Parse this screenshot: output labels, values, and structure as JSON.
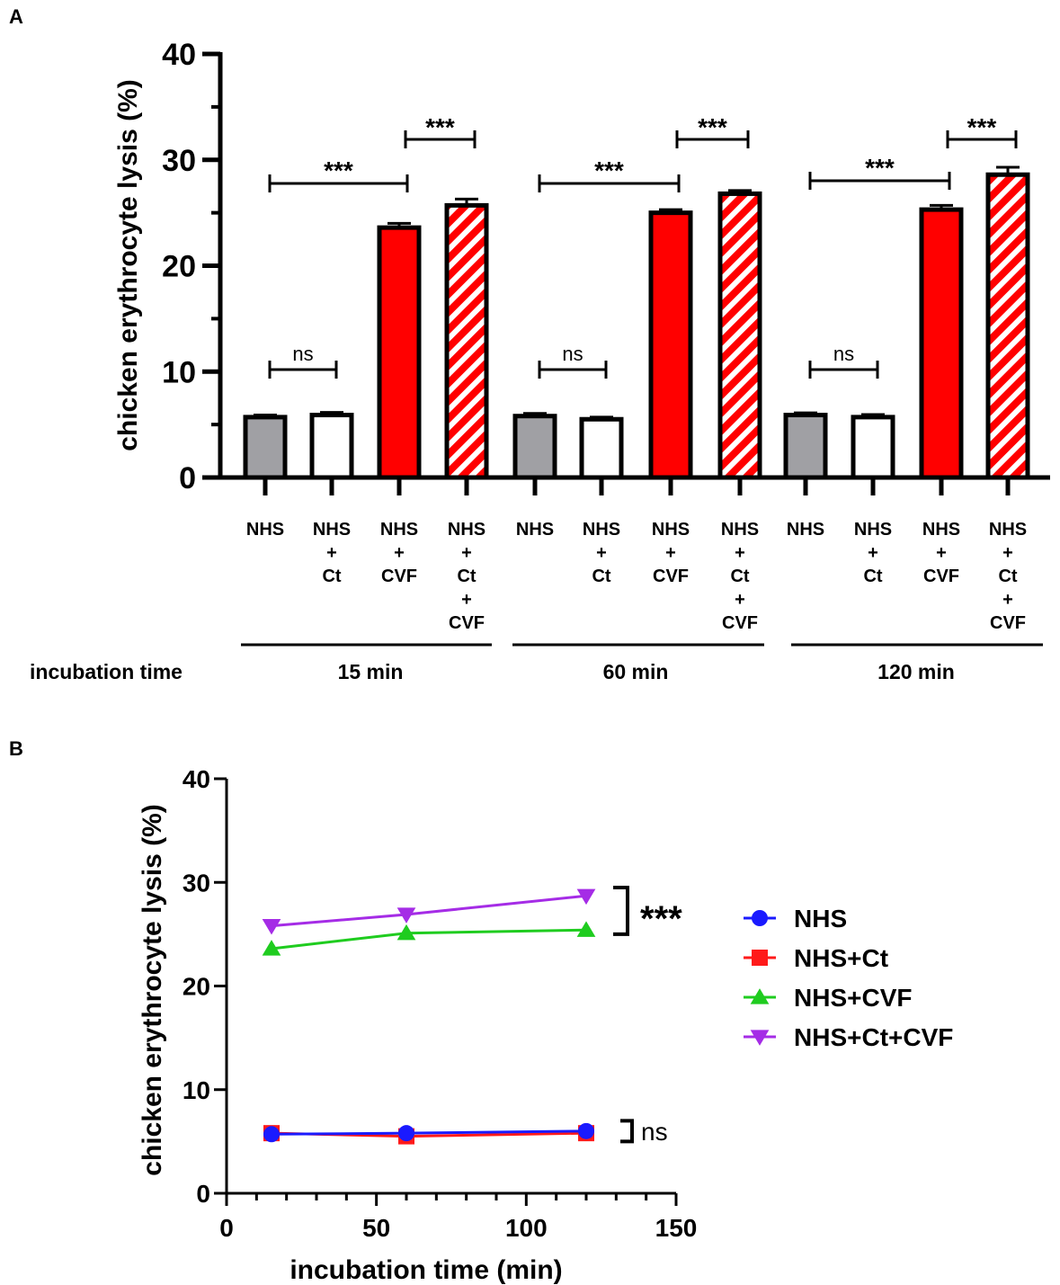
{
  "chart_data": [
    {
      "type": "bar",
      "panel_label": "A",
      "ylabel": "chicken erythrocyte lysis (%)",
      "ylim": [
        0,
        40
      ],
      "yticks": [
        "0",
        "10",
        "20",
        "30",
        "40"
      ],
      "group_axis_label": "incubation time",
      "groups": [
        {
          "label": "15 min",
          "bars": [
            {
              "label": [
                "NHS"
              ],
              "value": 5.7,
              "error": 0.2,
              "fill": "gray"
            },
            {
              "label": [
                "NHS",
                "+",
                "Ct"
              ],
              "value": 5.9,
              "error": 0.25,
              "fill": "white"
            },
            {
              "label": [
                "NHS",
                "+",
                "CVF"
              ],
              "value": 23.6,
              "error": 0.4,
              "fill": "red"
            },
            {
              "label": [
                "NHS",
                "+",
                "Ct",
                "+",
                "CVF"
              ],
              "value": 25.7,
              "error": 0.6,
              "fill": "hatched"
            }
          ],
          "brackets": [
            {
              "from": 0,
              "to": 1,
              "label": "ns"
            },
            {
              "from": 0,
              "to": 2,
              "label": "***"
            },
            {
              "from": 2,
              "to": 3,
              "label": "***"
            }
          ]
        },
        {
          "label": "60 min",
          "bars": [
            {
              "label": [
                "NHS"
              ],
              "value": 5.8,
              "error": 0.25,
              "fill": "gray"
            },
            {
              "label": [
                "NHS",
                "+",
                "Ct"
              ],
              "value": 5.5,
              "error": 0.2,
              "fill": "white"
            },
            {
              "label": [
                "NHS",
                "+",
                "CVF"
              ],
              "value": 25.0,
              "error": 0.3,
              "fill": "red"
            },
            {
              "label": [
                "NHS",
                "+",
                "Ct",
                "+",
                "CVF"
              ],
              "value": 26.8,
              "error": 0.3,
              "fill": "hatched"
            }
          ],
          "brackets": [
            {
              "from": 0,
              "to": 1,
              "label": "ns"
            },
            {
              "from": 0,
              "to": 2,
              "label": "***"
            },
            {
              "from": 2,
              "to": 3,
              "label": "***"
            }
          ]
        },
        {
          "label": "120 min",
          "bars": [
            {
              "label": [
                "NHS"
              ],
              "value": 5.9,
              "error": 0.2,
              "fill": "gray"
            },
            {
              "label": [
                "NHS",
                "+",
                "Ct"
              ],
              "value": 5.7,
              "error": 0.25,
              "fill": "white"
            },
            {
              "label": [
                "NHS",
                "+",
                "CVF"
              ],
              "value": 25.3,
              "error": 0.4,
              "fill": "red"
            },
            {
              "label": [
                "NHS",
                "+",
                "Ct",
                "+",
                "CVF"
              ],
              "value": 28.6,
              "error": 0.7,
              "fill": "hatched"
            }
          ],
          "brackets": [
            {
              "from": 0,
              "to": 1,
              "label": "ns"
            },
            {
              "from": 0,
              "to": 2,
              "label": "***"
            },
            {
              "from": 2,
              "to": 3,
              "label": "***"
            }
          ]
        }
      ]
    },
    {
      "type": "line",
      "panel_label": "B",
      "xlabel": "incubation time (min)",
      "ylabel": "chicken erythrocyte lysis (%)",
      "xlim": [
        0,
        150
      ],
      "ylim": [
        0,
        40
      ],
      "xticks": [
        "0",
        "50",
        "100",
        "150"
      ],
      "yticks": [
        "0",
        "10",
        "20",
        "30",
        "40"
      ],
      "x": [
        15,
        60,
        120
      ],
      "series": [
        {
          "name": "NHS",
          "values": [
            5.7,
            5.8,
            6.0
          ],
          "color": "#1a1aff",
          "marker": "circle"
        },
        {
          "name": "NHS+Ct",
          "values": [
            5.8,
            5.5,
            5.8
          ],
          "color": "#ff1a1a",
          "marker": "square"
        },
        {
          "name": "NHS+CVF",
          "values": [
            23.6,
            25.1,
            25.4
          ],
          "color": "#1fcc1f",
          "marker": "triangle-up"
        },
        {
          "name": "NHS+Ct+CVF",
          "values": [
            25.8,
            26.9,
            28.7
          ],
          "color": "#a52ce6",
          "marker": "triangle-down"
        }
      ],
      "annotations": [
        {
          "label": "***",
          "y_range": [
            25.0,
            29.5
          ]
        },
        {
          "label": "ns",
          "y_range": [
            5.0,
            7.0
          ]
        }
      ],
      "legend_position": "right"
    }
  ]
}
